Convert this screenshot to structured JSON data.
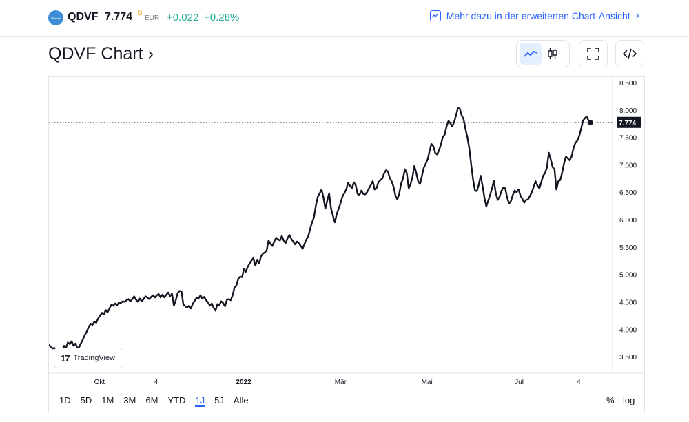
{
  "header": {
    "logo_text": "iShares",
    "symbol": "QDVF",
    "price": "7.774",
    "price_flag": "D",
    "currency": "EUR",
    "change": "+0.022",
    "change_pct": "+0.28%",
    "more_link": "Mehr dazu in der erweiterten Chart-Ansicht",
    "more_link_chevron": "›"
  },
  "title": "QDVF Chart ›",
  "toolbar": {
    "line_icon": "line-chart-icon",
    "candle_icon": "candlestick-icon",
    "fullscreen_icon": "fullscreen-icon",
    "embed_icon": "embed-code-icon"
  },
  "watermark": "TradingView",
  "ranges": [
    "1D",
    "5D",
    "1M",
    "3M",
    "6M",
    "YTD",
    "1J",
    "5J",
    "Alle"
  ],
  "active_range": "1J",
  "bottom_right": {
    "percent": "%",
    "log": "log"
  },
  "colors": {
    "line": "#131722",
    "accent": "#2962ff",
    "up": "#22ab94"
  },
  "chart_data": {
    "type": "line",
    "title": "",
    "xlabel": "",
    "ylabel": "",
    "ylim": [
      3.2,
      8.6
    ],
    "y_ticks": [
      "3.500",
      "4.000",
      "4.500",
      "5.000",
      "5.500",
      "6.000",
      "6.500",
      "7.000",
      "7.500",
      "8.000",
      "8.500"
    ],
    "x_tick_labels": [
      "Okt",
      "4",
      "2022",
      "Mär",
      "Mai",
      "Jul",
      "4"
    ],
    "x_tick_positions": [
      0.085,
      0.18,
      0.327,
      0.49,
      0.635,
      0.79,
      0.89
    ],
    "last_value": "7.774",
    "series": [
      {
        "values": [
          3.72,
          3.68,
          3.65,
          3.66,
          3.63,
          3.64,
          3.6,
          3.62,
          3.7,
          3.66,
          3.76,
          3.73,
          3.78,
          3.7,
          3.74,
          3.66,
          3.68,
          3.75,
          3.82,
          3.9,
          3.96,
          4.04,
          4.1,
          4.08,
          4.14,
          4.12,
          4.2,
          4.25,
          4.3,
          4.27,
          4.35,
          4.31,
          4.38,
          4.45,
          4.43,
          4.47,
          4.44,
          4.49,
          4.48,
          4.51,
          4.5,
          4.53,
          4.55,
          4.51,
          4.55,
          4.6,
          4.54,
          4.5,
          4.56,
          4.51,
          4.55,
          4.6,
          4.58,
          4.55,
          4.59,
          4.62,
          4.58,
          4.62,
          4.64,
          4.58,
          4.63,
          4.58,
          4.63,
          4.67,
          4.6,
          4.65,
          4.43,
          4.53,
          4.66,
          4.7,
          4.69,
          4.45,
          4.42,
          4.4,
          4.43,
          4.38,
          4.47,
          4.52,
          4.58,
          4.56,
          4.62,
          4.56,
          4.59,
          4.53,
          4.49,
          4.43,
          4.47,
          4.39,
          4.34,
          4.46,
          4.44,
          4.51,
          4.48,
          4.42,
          4.54,
          4.55,
          4.53,
          4.62,
          4.76,
          4.8,
          4.92,
          4.96,
          4.95,
          5.1,
          5.05,
          5.14,
          5.2,
          5.26,
          5.3,
          5.16,
          5.27,
          5.2,
          5.33,
          5.38,
          5.4,
          5.44,
          5.62,
          5.56,
          5.52,
          5.6,
          5.67,
          5.64,
          5.62,
          5.7,
          5.62,
          5.57,
          5.66,
          5.72,
          5.65,
          5.6,
          5.55,
          5.6,
          5.57,
          5.52,
          5.47,
          5.56,
          5.64,
          5.7,
          5.84,
          5.95,
          6.05,
          6.26,
          6.42,
          6.48,
          6.55,
          6.4,
          6.2,
          6.35,
          6.48,
          6.2,
          6.07,
          5.95,
          6.1,
          6.2,
          6.3,
          6.42,
          6.48,
          6.55,
          6.67,
          6.62,
          6.57,
          6.68,
          6.63,
          6.47,
          6.45,
          6.53,
          6.47,
          6.46,
          6.5,
          6.57,
          6.63,
          6.7,
          6.55,
          6.57,
          6.68,
          6.72,
          6.75,
          6.84,
          6.9,
          6.88,
          6.76,
          6.7,
          6.6,
          6.44,
          6.37,
          6.47,
          6.66,
          6.75,
          6.92,
          6.85,
          6.57,
          6.65,
          6.78,
          6.98,
          6.85,
          6.7,
          6.65,
          6.8,
          6.95,
          7.02,
          7.1,
          7.25,
          7.38,
          7.34,
          7.22,
          7.19,
          7.26,
          7.37,
          7.5,
          7.55,
          7.7,
          7.8,
          7.76,
          7.7,
          7.78,
          7.9,
          8.04,
          8.02,
          7.9,
          7.83,
          7.65,
          7.5,
          7.3,
          7.0,
          6.73,
          6.53,
          6.52,
          6.64,
          6.8,
          6.62,
          6.4,
          6.24,
          6.35,
          6.45,
          6.57,
          6.71,
          6.48,
          6.36,
          6.42,
          6.52,
          6.59,
          6.57,
          6.4,
          6.29,
          6.34,
          6.45,
          6.53,
          6.5,
          6.55,
          6.44,
          6.38,
          6.31,
          6.36,
          6.37,
          6.43,
          6.5,
          6.6,
          6.7,
          6.62,
          6.57,
          6.68,
          6.8,
          6.85,
          6.95,
          7.22,
          7.1,
          6.96,
          6.92,
          6.55,
          6.7,
          6.72,
          6.85,
          7.02,
          7.15,
          7.12,
          7.08,
          7.15,
          7.3,
          7.4,
          7.44,
          7.52,
          7.65,
          7.8,
          7.85,
          7.88,
          7.8,
          7.77
        ]
      }
    ]
  }
}
